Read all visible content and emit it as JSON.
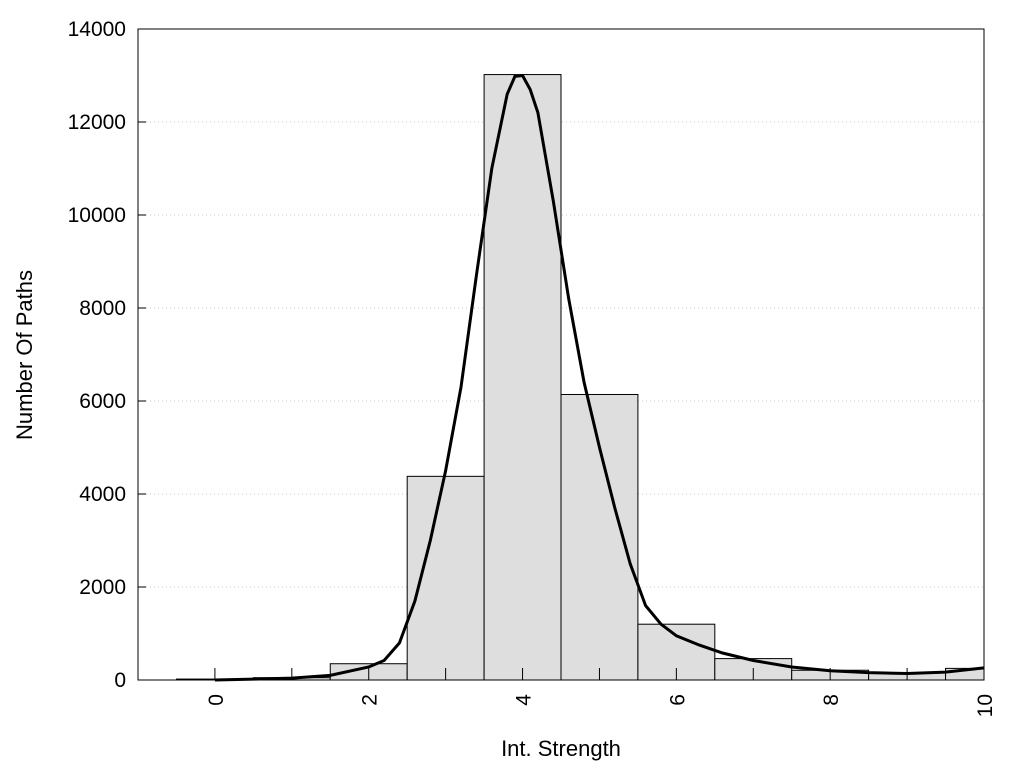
{
  "chart_data": {
    "type": "bar",
    "xlabel": "Int. Strength",
    "ylabel": "Number Of Paths",
    "xlim": [
      -1,
      10
    ],
    "ylim": [
      0,
      14000
    ],
    "xticks": [
      0,
      2,
      4,
      6,
      8,
      10
    ],
    "yticks": [
      0,
      2000,
      4000,
      6000,
      8000,
      10000,
      12000,
      14000
    ],
    "grid": "horizontal dotted",
    "legend": "none",
    "bin_width": 1,
    "bars": {
      "centers": [
        0,
        1,
        2,
        3,
        4,
        5,
        6,
        7,
        8,
        9,
        10
      ],
      "values": [
        20,
        50,
        350,
        4380,
        13020,
        6140,
        1200,
        460,
        210,
        160,
        250
      ]
    },
    "series": [
      {
        "type": "line",
        "x": [
          0,
          0.5,
          1,
          1.5,
          2,
          2.2,
          2.4,
          2.6,
          2.8,
          3,
          3.2,
          3.4,
          3.6,
          3.8,
          3.9,
          4,
          4.1,
          4.2,
          4.4,
          4.6,
          4.8,
          5,
          5.2,
          5.4,
          5.6,
          5.8,
          6,
          6.3,
          6.6,
          7,
          7.5,
          8,
          8.5,
          9,
          9.5,
          10
        ],
        "y": [
          0,
          20,
          40,
          100,
          280,
          420,
          800,
          1700,
          3000,
          4500,
          6300,
          8700,
          11000,
          12600,
          12980,
          13000,
          12700,
          12200,
          10300,
          8200,
          6400,
          5000,
          3700,
          2500,
          1600,
          1200,
          950,
          750,
          580,
          420,
          280,
          200,
          160,
          140,
          170,
          260
        ]
      }
    ]
  }
}
